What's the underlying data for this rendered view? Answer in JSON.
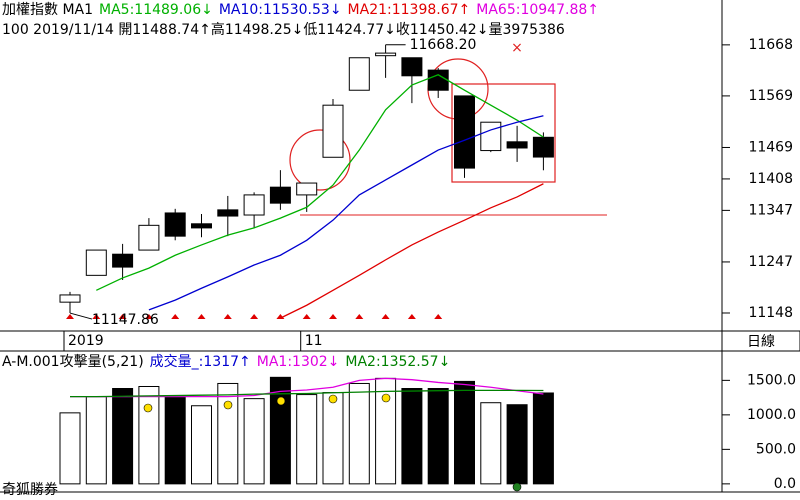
{
  "header": {
    "name": "加權指數 MA1",
    "ma_labels": [
      {
        "text": "MA5:11489.06↓",
        "color": "#00b000"
      },
      {
        "text": "MA10:11530.53↓",
        "color": "#0000d0"
      },
      {
        "text": "MA21:11398.67↑",
        "color": "#e00000"
      },
      {
        "text": "MA65:10947.88↑",
        "color": "#e000e0"
      }
    ],
    "quote": "100 2019/11/14 開11488.74↑高11498.25↓低11424.77↓收11450.42↓量3975386",
    "period": "日線",
    "brand": "奇狐勝券"
  },
  "chart_data": [
    {
      "type": "candlestick",
      "categories": [
        "2019",
        null,
        null,
        null,
        null,
        null,
        null,
        null,
        null,
        "11",
        null,
        null,
        null,
        null,
        null,
        null,
        null,
        null,
        null
      ],
      "open": [
        11169,
        11221,
        11262,
        11270,
        11342,
        11321,
        11348,
        11338,
        11392,
        11377,
        11450,
        11580,
        11647,
        11643,
        11619,
        11569,
        11463,
        11480,
        11488.74
      ],
      "high": [
        11189,
        11270,
        11282,
        11332,
        11350,
        11340,
        11375,
        11382,
        11425,
        11400,
        11563,
        11643,
        11668.2,
        11643,
        11623,
        11569,
        11518,
        11511,
        11498.25
      ],
      "low": [
        11147.86,
        11221,
        11212,
        11270,
        11289,
        11295,
        11297,
        11313,
        11348,
        11344,
        11450,
        11580,
        11604,
        11555,
        11565,
        11410,
        11460,
        11441,
        11424.77
      ],
      "close": [
        11183,
        11270,
        11237,
        11318,
        11297,
        11313,
        11336,
        11377,
        11361,
        11400,
        11551,
        11643,
        11652,
        11608,
        11580,
        11429,
        11518,
        11468,
        11450.42
      ],
      "up_color": "#ffffff",
      "down_color": "#000000",
      "series": [
        {
          "name": "MA5",
          "color": "#00b000",
          "values": [
            null,
            11192,
            11216,
            11235,
            11260,
            11280,
            11299,
            11313,
            11332,
            11353,
            11396,
            11464,
            11542,
            11590,
            11610,
            11580,
            11551,
            11522,
            11489.06
          ]
        },
        {
          "name": "MA10",
          "color": "#0000d0",
          "values": [
            null,
            null,
            null,
            11154,
            11173,
            11196,
            11218,
            11241,
            11260,
            11289,
            11328,
            11377,
            11406,
            11435,
            11464,
            11483,
            11503,
            11518,
            11530.53
          ]
        },
        {
          "name": "MA21",
          "color": "#e00000",
          "values": [
            null,
            null,
            null,
            null,
            null,
            null,
            null,
            null,
            11138,
            11163,
            11192,
            11221,
            11251,
            11280,
            11305,
            11328,
            11352,
            11373,
            11398.67
          ]
        }
      ],
      "annotations": [
        "11668.20",
        "11147.86"
      ],
      "ylim": [
        11115,
        11755
      ],
      "yticks": [
        11148,
        11247,
        11347,
        11408,
        11469,
        11569,
        11668
      ]
    },
    {
      "type": "bar",
      "title": "A-M.001攻擊量(5,21)",
      "legend_labels": [
        {
          "text": "成交量_:1317↑",
          "color": "#0000d0"
        },
        {
          "text": "MA1:1302↓",
          "color": "#e000e0"
        },
        {
          "text": "MA2:1352.57↓",
          "color": "#008000"
        }
      ],
      "values": [
        1029,
        1264,
        1382,
        1411,
        1264,
        1132,
        1455,
        1235,
        1544,
        1294,
        1323,
        1455,
        1529,
        1382,
        1382,
        1485,
        1176,
        1147,
        1317
      ],
      "colors": [
        "#ffffff",
        "#ffffff",
        "#000000",
        "#ffffff",
        "#000000",
        "#ffffff",
        "#ffffff",
        "#ffffff",
        "#000000",
        "#ffffff",
        "#ffffff",
        "#ffffff",
        "#ffffff",
        "#000000",
        "#000000",
        "#000000",
        "#ffffff",
        "#000000",
        "#000000"
      ],
      "series": [
        {
          "name": "MA1",
          "color": "#e000e0",
          "values": [
            1264,
            1264,
            1264,
            1264,
            1264,
            1264,
            1264,
            1280,
            1340,
            1360,
            1400,
            1500,
            1529,
            1510,
            1470,
            1440,
            1400,
            1350,
            1302
          ]
        },
        {
          "name": "MA2",
          "color": "#008000",
          "values": [
            1264,
            1264,
            1270,
            1275,
            1280,
            1285,
            1290,
            1300,
            1305,
            1310,
            1320,
            1330,
            1340,
            1345,
            1350,
            1355,
            1355,
            1355,
            1352.57
          ]
        }
      ],
      "ylim": [
        -118,
        1911
      ],
      "yticks": [
        {
          "value": 0,
          "label": "0.0"
        },
        {
          "value": 500,
          "label": "500.0"
        },
        {
          "value": 1000,
          "label": "1000.0"
        },
        {
          "value": 1500,
          "label": "1500.0"
        }
      ]
    }
  ]
}
